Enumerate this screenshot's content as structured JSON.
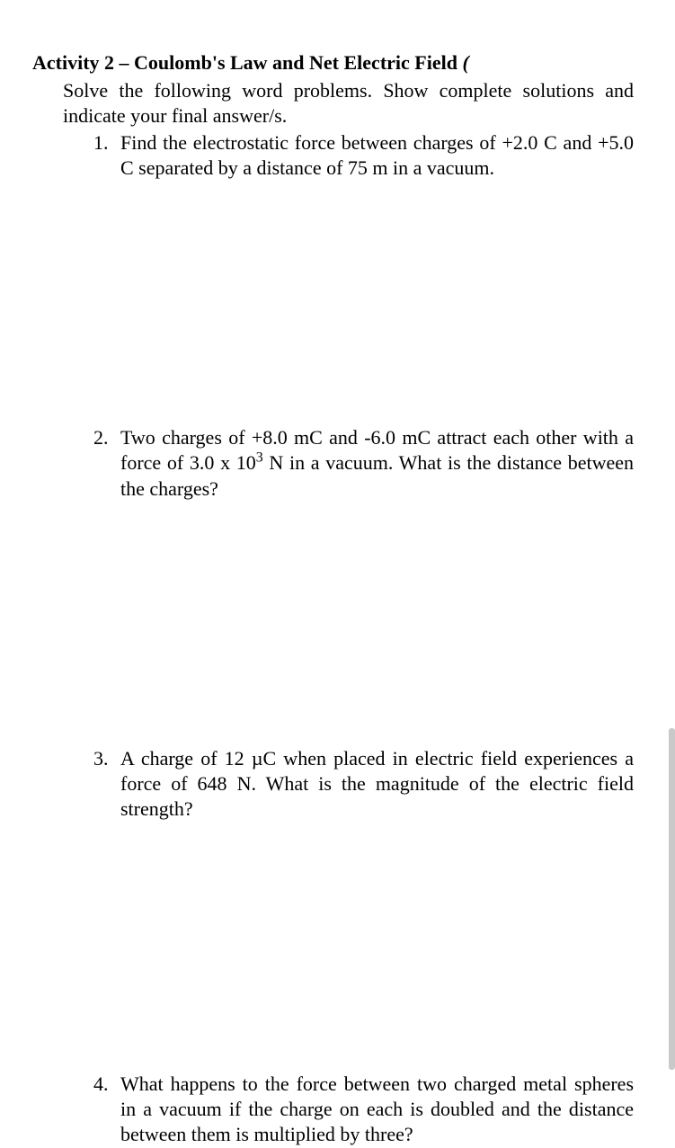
{
  "title_prefix": "Activity 2 – Coulomb's Law and Net Electric Field ",
  "title_paren": "(",
  "instructions": "Solve the following word problems. Show complete solutions and indicate your final answer/s.",
  "questions": [
    {
      "n": "1.",
      "text": "Find the electrostatic force between charges of +2.0 C and +5.0 C separated by a distance of 75 m in a vacuum."
    },
    {
      "n": "2.",
      "text_pre": "Two charges of +8.0 mC and -6.0 mC attract each other with a force of 3.0 x 10",
      "exp": "3",
      "text_post": " N in a vacuum.  What is the distance between the charges?"
    },
    {
      "n": "3.",
      "text": "A charge of 12 µC when placed in electric field experiences a force of 648 N. What is the magnitude of the electric field strength?"
    },
    {
      "n": "4.",
      "text": "What happens to the force between two charged metal spheres in a vacuum if the charge on each is doubled and the distance between them is multiplied by three?"
    }
  ],
  "colors": {
    "bg": "#ffffff",
    "text": "#000000",
    "scrollbar": "#c9c9c9"
  }
}
